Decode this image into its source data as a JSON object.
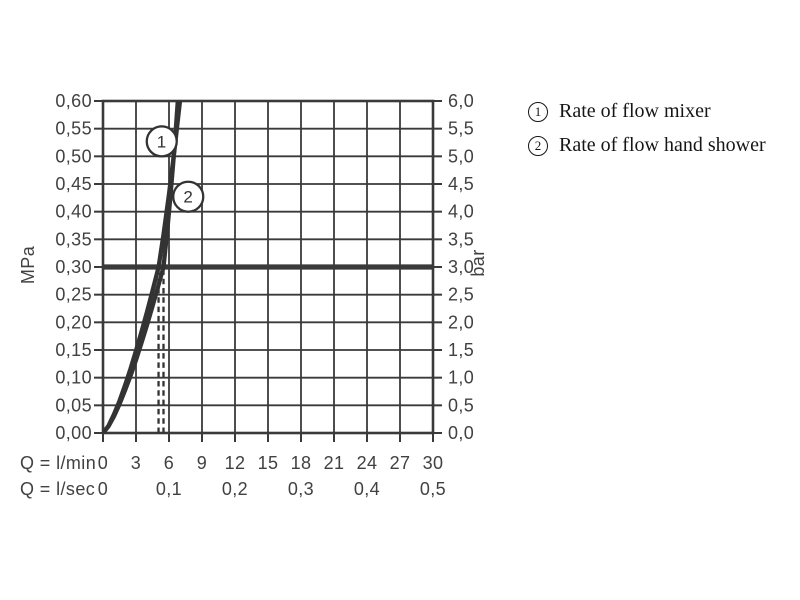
{
  "theme": {
    "background": "#ffffff",
    "grid_color": "#3a3a3a",
    "curve_color": "#333333",
    "text_color": "#414141",
    "legend_text_color": "#161616"
  },
  "legend": {
    "items": [
      {
        "symbol": "1",
        "label": "Rate of flow mixer"
      },
      {
        "symbol": "2",
        "label": "Rate of flow hand shower"
      }
    ]
  },
  "chart_data": {
    "type": "line",
    "title": "",
    "grid": "on",
    "x_axis": {
      "range": [
        0,
        30
      ],
      "gridline_step": 3,
      "unit_rows": [
        {
          "label": "Q = l/min",
          "ticks": [
            {
              "v": 0,
              "t": "0"
            },
            {
              "v": 3,
              "t": "3"
            },
            {
              "v": 6,
              "t": "6"
            },
            {
              "v": 9,
              "t": "9"
            },
            {
              "v": 12,
              "t": "12"
            },
            {
              "v": 15,
              "t": "15"
            },
            {
              "v": 18,
              "t": "18"
            },
            {
              "v": 21,
              "t": "21"
            },
            {
              "v": 24,
              "t": "24"
            },
            {
              "v": 27,
              "t": "27"
            },
            {
              "v": 30,
              "t": "30"
            }
          ]
        },
        {
          "label": "Q = l/sec",
          "ticks": [
            {
              "v": 0,
              "t": "0"
            },
            {
              "v": 6,
              "t": "0,1"
            },
            {
              "v": 12,
              "t": "0,2"
            },
            {
              "v": 18,
              "t": "0,3"
            },
            {
              "v": 24,
              "t": "0,4"
            },
            {
              "v": 30,
              "t": "0,5"
            }
          ]
        }
      ]
    },
    "y_axis_left": {
      "label": "MPa",
      "range": [
        0,
        0.6
      ],
      "step": 0.05,
      "ticks": [
        {
          "v": 0.0,
          "t": "0,00"
        },
        {
          "v": 0.05,
          "t": "0,05"
        },
        {
          "v": 0.1,
          "t": "0,10"
        },
        {
          "v": 0.15,
          "t": "0,15"
        },
        {
          "v": 0.2,
          "t": "0,20"
        },
        {
          "v": 0.25,
          "t": "0,25"
        },
        {
          "v": 0.3,
          "t": "0,30"
        },
        {
          "v": 0.35,
          "t": "0,35"
        },
        {
          "v": 0.4,
          "t": "0,40"
        },
        {
          "v": 0.45,
          "t": "0,45"
        },
        {
          "v": 0.5,
          "t": "0,50"
        },
        {
          "v": 0.55,
          "t": "0,55"
        },
        {
          "v": 0.6,
          "t": "0,60"
        }
      ]
    },
    "y_axis_right": {
      "label": "bar",
      "range": [
        0,
        6
      ],
      "ticks": [
        {
          "v": 0.0,
          "t": "0,0"
        },
        {
          "v": 0.05,
          "t": "0,5"
        },
        {
          "v": 0.1,
          "t": "1,0"
        },
        {
          "v": 0.15,
          "t": "1,5"
        },
        {
          "v": 0.2,
          "t": "2,0"
        },
        {
          "v": 0.25,
          "t": "2,5"
        },
        {
          "v": 0.3,
          "t": "3,0"
        },
        {
          "v": 0.35,
          "t": "3,5"
        },
        {
          "v": 0.4,
          "t": "4,0"
        },
        {
          "v": 0.45,
          "t": "4,5"
        },
        {
          "v": 0.5,
          "t": "5,0"
        },
        {
          "v": 0.55,
          "t": "5,5"
        },
        {
          "v": 0.6,
          "t": "6,0"
        }
      ]
    },
    "reference_line": {
      "y_mpa": 0.3,
      "y_bar": 3.0
    },
    "guide_lines": [
      {
        "x_lmin": 5.05
      },
      {
        "x_lmin": 5.5
      }
    ],
    "series": [
      {
        "name": "Rate of flow mixer",
        "marker": "1",
        "flow_at_3bar_lmin": 5.05,
        "points": [
          [
            0,
            0
          ],
          [
            0.5,
            0.013
          ],
          [
            1,
            0.034
          ],
          [
            1.5,
            0.058
          ],
          [
            2,
            0.086
          ],
          [
            2.5,
            0.116
          ],
          [
            3,
            0.149
          ],
          [
            3.5,
            0.183
          ],
          [
            4,
            0.219
          ],
          [
            4.5,
            0.257
          ],
          [
            5.05,
            0.3
          ],
          [
            5.5,
            0.359
          ],
          [
            6,
            0.432
          ],
          [
            6.5,
            0.512
          ],
          [
            7,
            0.6
          ]
        ]
      },
      {
        "name": "Rate of flow hand shower",
        "marker": "2",
        "flow_at_3bar_lmin": 5.5,
        "points": [
          [
            0,
            0
          ],
          [
            0.5,
            0.012
          ],
          [
            1,
            0.03
          ],
          [
            1.5,
            0.052
          ],
          [
            2,
            0.077
          ],
          [
            2.5,
            0.103
          ],
          [
            3,
            0.132
          ],
          [
            3.5,
            0.163
          ],
          [
            4,
            0.195
          ],
          [
            4.5,
            0.229
          ],
          [
            5,
            0.264
          ],
          [
            5.5,
            0.3
          ],
          [
            5.8,
            0.357
          ],
          [
            6.1,
            0.421
          ],
          [
            6.4,
            0.492
          ],
          [
            6.6,
            0.544
          ],
          [
            6.8,
            0.6
          ]
        ]
      }
    ],
    "markers": [
      {
        "symbol": "1",
        "q_lmin": 5.34,
        "p_mpa": 0.527
      },
      {
        "symbol": "2",
        "q_lmin": 7.75,
        "p_mpa": 0.427
      }
    ]
  }
}
